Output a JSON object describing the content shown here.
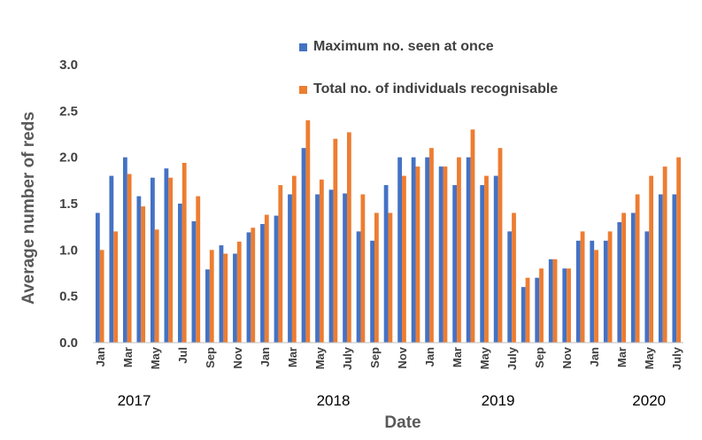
{
  "chart_data": {
    "type": "bar",
    "xlabel": "Date",
    "ylabel": "Average number of reds",
    "ylim": [
      0,
      3
    ],
    "yticks": [
      "0.0",
      "0.5",
      "1.0",
      "1.5",
      "2.0",
      "2.5",
      "3.0"
    ],
    "grid": false,
    "legend_position": "top-right",
    "tick_labels": [
      {
        "label": "Jan",
        "index": 0
      },
      {
        "label": "Mar",
        "index": 2
      },
      {
        "label": "May",
        "index": 4
      },
      {
        "label": "Jul",
        "index": 6
      },
      {
        "label": "Sep",
        "index": 8
      },
      {
        "label": "Nov",
        "index": 10
      },
      {
        "label": "Jan",
        "index": 12
      },
      {
        "label": "Mar",
        "index": 14
      },
      {
        "label": "May",
        "index": 16
      },
      {
        "label": "July",
        "index": 18
      },
      {
        "label": "Sep",
        "index": 20
      },
      {
        "label": "Nov",
        "index": 22
      },
      {
        "label": "Jan",
        "index": 24
      },
      {
        "label": "Mar",
        "index": 26
      },
      {
        "label": "May",
        "index": 28
      },
      {
        "label": "July",
        "index": 30
      },
      {
        "label": "Sep",
        "index": 32
      },
      {
        "label": "Nov",
        "index": 34
      },
      {
        "label": "Jan",
        "index": 36
      },
      {
        "label": "Mar",
        "index": 38
      },
      {
        "label": "May",
        "index": 40
      },
      {
        "label": "July",
        "index": 42
      }
    ],
    "years": [
      {
        "label": "2017",
        "index": 2.5
      },
      {
        "label": "2018",
        "index": 17
      },
      {
        "label": "2019",
        "index": 29
      },
      {
        "label": "2020",
        "index": 40
      }
    ],
    "series": [
      {
        "name": "Maximum no. seen at once",
        "color": "#4472C4",
        "values": [
          1.4,
          1.8,
          2.0,
          1.58,
          1.78,
          1.88,
          1.5,
          1.31,
          0.79,
          1.05,
          0.96,
          1.19,
          1.28,
          1.37,
          1.6,
          2.1,
          1.6,
          1.65,
          1.61,
          1.2,
          1.1,
          1.7,
          2.0,
          2.0,
          2.0,
          1.9,
          1.7,
          2.0,
          1.7,
          1.8,
          1.2,
          0.6,
          0.7,
          0.9,
          0.8,
          1.1,
          1.1,
          1.1,
          1.3,
          1.4,
          1.2,
          1.6,
          1.6
        ]
      },
      {
        "name": "Total no. of individuals recognisable",
        "color": "#ED7D31",
        "values": [
          1.0,
          1.2,
          1.82,
          1.47,
          1.22,
          1.78,
          1.94,
          1.58,
          1.0,
          0.96,
          1.09,
          1.24,
          1.38,
          1.7,
          1.8,
          2.4,
          1.76,
          2.2,
          2.27,
          1.6,
          1.4,
          1.4,
          1.8,
          1.9,
          2.1,
          1.9,
          2.0,
          2.3,
          1.8,
          2.1,
          1.4,
          0.7,
          0.8,
          0.9,
          0.8,
          1.2,
          1.0,
          1.2,
          1.4,
          1.6,
          1.8,
          1.9,
          2.0
        ]
      }
    ]
  }
}
